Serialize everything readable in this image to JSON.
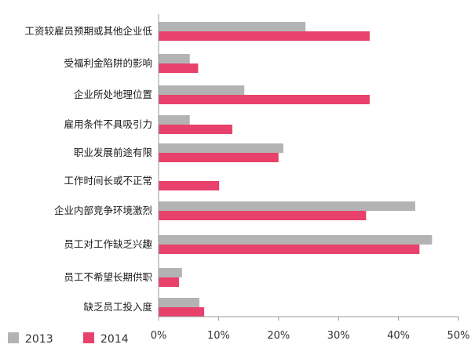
{
  "chart_data": {
    "type": "bar",
    "orientation": "horizontal",
    "categories": [
      "工资较雇员预期或其他企业低",
      "受福利金陷阱的影响",
      "企业所处地理位置",
      "雇用条件不具吸引力",
      "职业发展前途有限",
      "工作时间长或不正常",
      "企业内部竞争环境激烈",
      "员工对工作缺乏兴趣",
      "员工不希望长期供职",
      "缺乏员工投入度"
    ],
    "series": [
      {
        "name": "2013",
        "color": "#b3b3b3",
        "values": [
          24.5,
          5.2,
          14.3,
          5.2,
          20.8,
          null,
          42.8,
          45.6,
          3.9,
          6.8
        ]
      },
      {
        "name": "2014",
        "color": "#e8416b",
        "values": [
          35.2,
          6.6,
          35.2,
          12.3,
          20.0,
          10.1,
          34.6,
          43.5,
          3.4,
          7.6
        ]
      }
    ],
    "xlim": [
      0,
      50
    ],
    "x_ticks": [
      "0%",
      "10%",
      "20%",
      "30%",
      "40%",
      "50%"
    ],
    "legend_position": "bottom-left",
    "grid": false
  }
}
